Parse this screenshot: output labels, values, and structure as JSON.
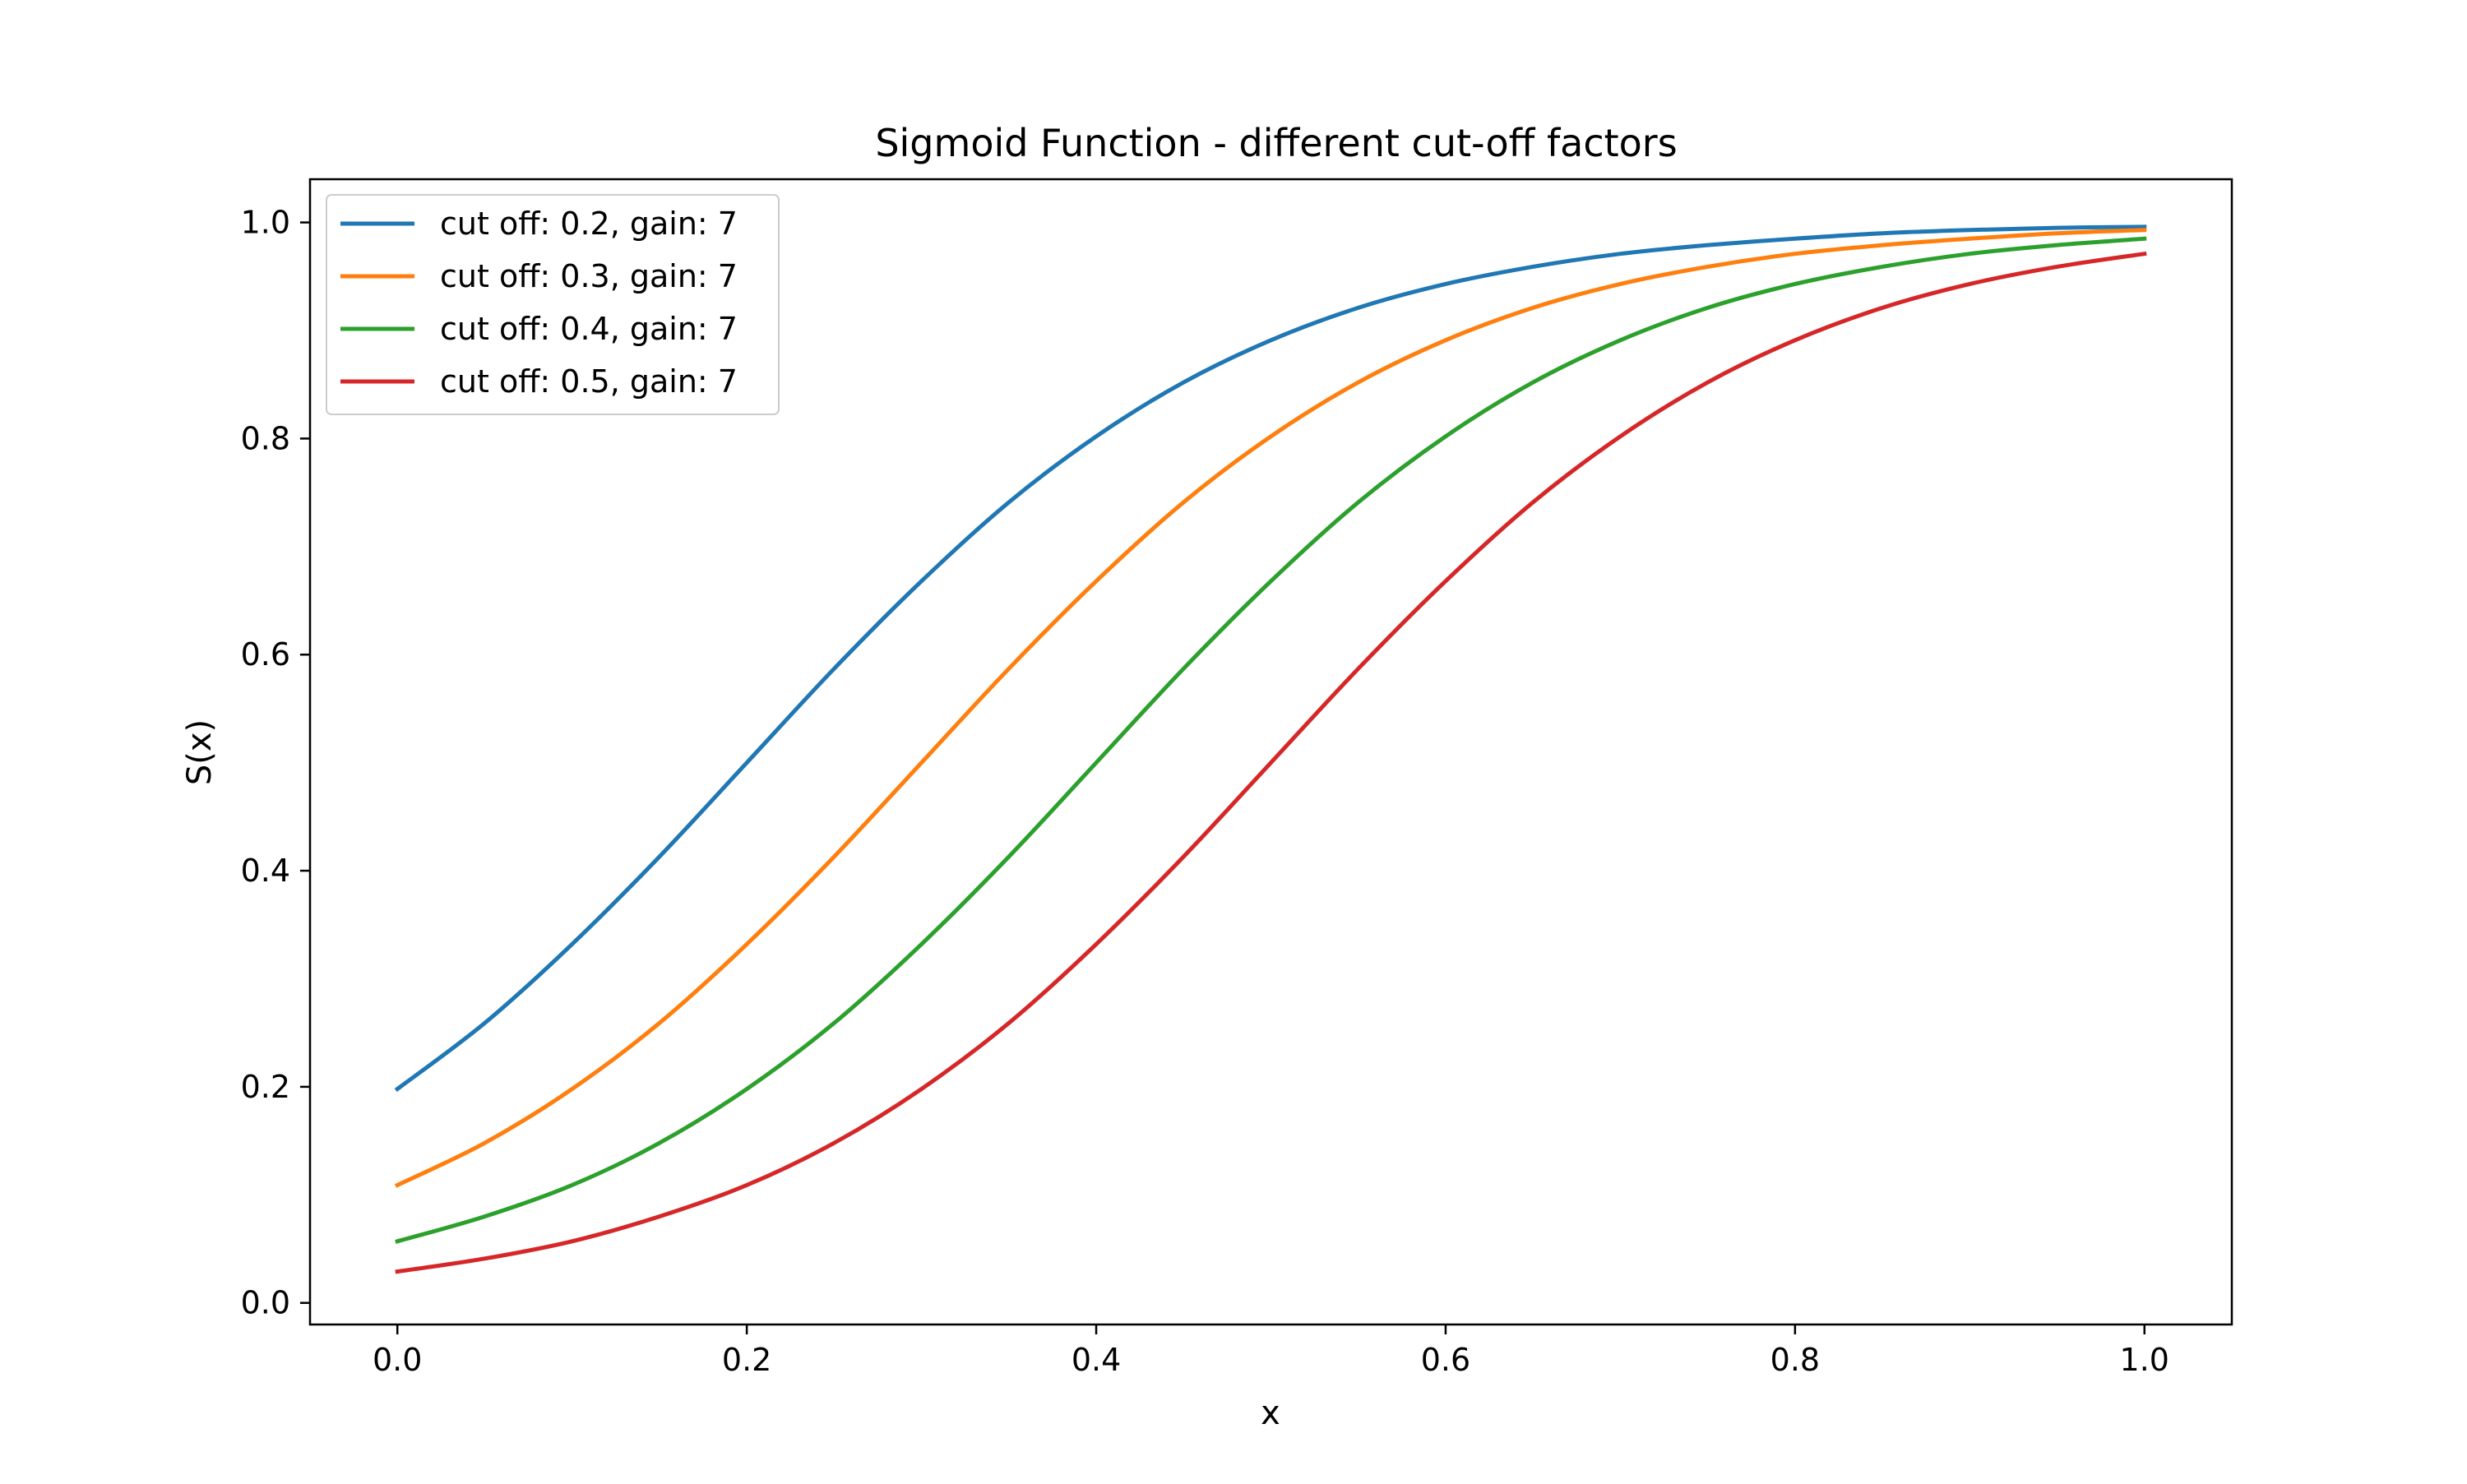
{
  "chart_data": {
    "type": "line",
    "title": "Sigmoid Function - different cut-off factors",
    "xlabel": "x",
    "ylabel": "S(x)",
    "xlim": [
      -0.05,
      1.05
    ],
    "ylim": [
      -0.02,
      1.04
    ],
    "x_ticks": [
      0.0,
      0.2,
      0.4,
      0.6,
      0.8,
      1.0
    ],
    "x_tick_labels": [
      "0.0",
      "0.2",
      "0.4",
      "0.6",
      "0.8",
      "1.0"
    ],
    "y_ticks": [
      0.0,
      0.2,
      0.4,
      0.6,
      0.8,
      1.0
    ],
    "y_tick_labels": [
      "0.0",
      "0.2",
      "0.4",
      "0.6",
      "0.8",
      "1.0"
    ],
    "grid": false,
    "legend_position": "upper-left",
    "x": [
      0.0,
      0.05,
      0.1,
      0.15,
      0.2,
      0.25,
      0.3,
      0.35,
      0.4,
      0.45,
      0.5,
      0.55,
      0.6,
      0.65,
      0.7,
      0.75,
      0.8,
      0.85,
      0.9,
      0.95,
      1.0
    ],
    "series": [
      {
        "name": "cut off: 0.2, gain: 7",
        "color": "#1f77b4",
        "values": [
          0.198,
          0.259,
          0.332,
          0.413,
          0.5,
          0.587,
          0.668,
          0.741,
          0.802,
          0.852,
          0.891,
          0.921,
          0.943,
          0.959,
          0.971,
          0.979,
          0.985,
          0.99,
          0.993,
          0.995,
          0.996
        ]
      },
      {
        "name": "cut off: 0.3, gain: 7",
        "color": "#ff7f0e",
        "values": [
          0.109,
          0.148,
          0.198,
          0.259,
          0.332,
          0.413,
          0.5,
          0.587,
          0.668,
          0.741,
          0.802,
          0.852,
          0.891,
          0.921,
          0.943,
          0.959,
          0.971,
          0.979,
          0.985,
          0.99,
          0.993
        ]
      },
      {
        "name": "cut off: 0.4, gain: 7",
        "color": "#2ca02c",
        "values": [
          0.057,
          0.08,
          0.109,
          0.148,
          0.198,
          0.259,
          0.332,
          0.413,
          0.5,
          0.587,
          0.668,
          0.741,
          0.802,
          0.852,
          0.891,
          0.921,
          0.943,
          0.959,
          0.971,
          0.979,
          0.985
        ]
      },
      {
        "name": "cut off: 0.5, gain: 7",
        "color": "#d62728",
        "values": [
          0.029,
          0.041,
          0.057,
          0.08,
          0.109,
          0.148,
          0.198,
          0.259,
          0.332,
          0.413,
          0.5,
          0.587,
          0.668,
          0.741,
          0.802,
          0.852,
          0.891,
          0.921,
          0.943,
          0.959,
          0.971
        ]
      }
    ]
  }
}
